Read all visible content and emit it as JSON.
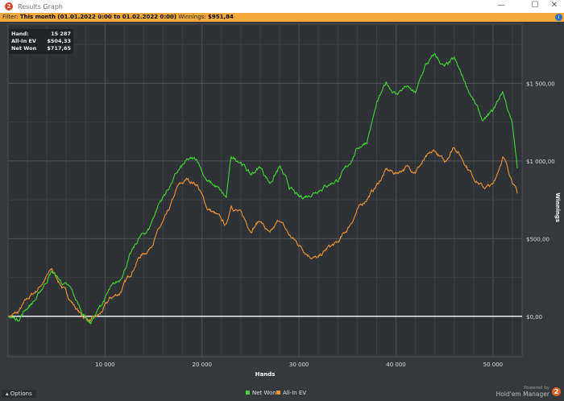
{
  "window": {
    "title": "Results Graph",
    "minimize": "—",
    "maximize": "☐",
    "close": "✕"
  },
  "filter": {
    "label": "Filter:",
    "value": "This month (01.01.2022 0:00 to 01.02.2022 0:00)",
    "winnings_label": "Winnings:",
    "winnings_value": "$951,84",
    "info_icon": "i"
  },
  "tooltip": {
    "hand_label": "Hand:",
    "hand_value": "15 287",
    "ev_label": "All-In EV",
    "ev_value": "$504,33",
    "net_label": "Net Won",
    "net_value": "$717,65"
  },
  "options_label": "Options",
  "brand": {
    "powered": "Powered by",
    "name": "Hold'em Manager",
    "logo": "2"
  },
  "chart_data": {
    "type": "line",
    "xlabel": "Hands",
    "ylabel": "Winnings",
    "xlim": [
      0,
      53000
    ],
    "ylim": [
      -260,
      1880
    ],
    "xticks": [
      10000,
      20000,
      30000,
      40000,
      50000
    ],
    "xtick_labels": [
      "10 000",
      "20 000",
      "30 000",
      "40 000",
      "50 000"
    ],
    "yticks": [
      0,
      500,
      1000,
      1500
    ],
    "ytick_labels": [
      "$0,00",
      "$500,00",
      "$1 000,00",
      "$1 500,00"
    ],
    "grid": true,
    "legend": "bottom-center",
    "series": [
      {
        "name": "Net Won",
        "color": "#3fd62e",
        "x": [
          0,
          1000,
          2000,
          3000,
          4500,
          5500,
          6500,
          7500,
          8500,
          9500,
          10500,
          11500,
          12500,
          13500,
          14500,
          15500,
          16500,
          17500,
          18500,
          19500,
          20500,
          21500,
          22500,
          23000,
          24000,
          25000,
          26000,
          27000,
          28000,
          29000,
          30000,
          31000,
          32000,
          33000,
          34000,
          35000,
          36000,
          37000,
          38000,
          39000,
          40000,
          41000,
          42000,
          43000,
          44000,
          45000,
          46000,
          47000,
          48000,
          49000,
          50000,
          51000,
          52000,
          52500
        ],
        "y": [
          0,
          -20,
          60,
          120,
          290,
          220,
          170,
          40,
          -40,
          60,
          170,
          230,
          380,
          500,
          560,
          720,
          820,
          930,
          1000,
          1010,
          870,
          830,
          760,
          1020,
          1000,
          910,
          960,
          860,
          960,
          830,
          760,
          780,
          820,
          850,
          880,
          960,
          1080,
          1130,
          1360,
          1500,
          1430,
          1480,
          1430,
          1610,
          1680,
          1600,
          1650,
          1520,
          1390,
          1250,
          1320,
          1450,
          1230,
          952
        ]
      },
      {
        "name": "All-In EV",
        "color": "#f0932f",
        "x": [
          0,
          1000,
          2000,
          3000,
          4500,
          5500,
          6500,
          7500,
          8500,
          9500,
          10500,
          11500,
          12500,
          13500,
          14500,
          15500,
          16500,
          17500,
          18500,
          19500,
          20500,
          21500,
          22500,
          23000,
          24000,
          25000,
          26000,
          27000,
          28000,
          29000,
          30000,
          31000,
          32000,
          33000,
          34000,
          35000,
          36000,
          37000,
          38000,
          39000,
          40000,
          41000,
          42000,
          43000,
          44000,
          45000,
          46000,
          47000,
          48000,
          49000,
          50000,
          51000,
          52000,
          52500
        ],
        "y": [
          0,
          20,
          110,
          170,
          300,
          200,
          100,
          10,
          -30,
          10,
          110,
          150,
          260,
          380,
          430,
          550,
          660,
          830,
          880,
          850,
          700,
          650,
          580,
          720,
          660,
          560,
          620,
          520,
          620,
          520,
          460,
          400,
          370,
          440,
          470,
          560,
          680,
          760,
          840,
          940,
          920,
          960,
          940,
          1010,
          1060,
          990,
          1100,
          1000,
          900,
          830,
          840,
          1030,
          880,
          790
        ]
      }
    ]
  }
}
